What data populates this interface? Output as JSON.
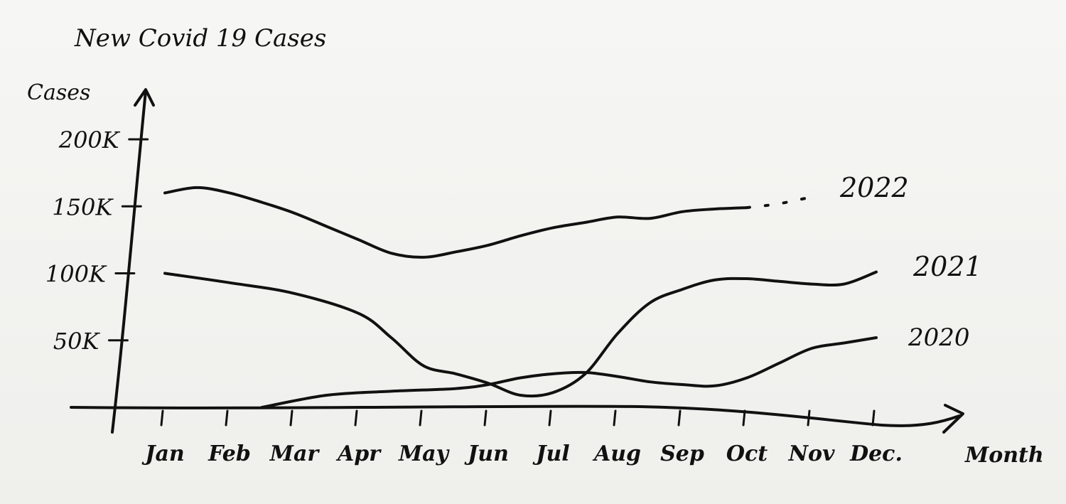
{
  "chart_data": {
    "type": "line",
    "title": "New Covid 19 Cases",
    "xlabel": "Month",
    "ylabel": "Cases",
    "categories": [
      "Jan",
      "Feb",
      "Mar",
      "Apr",
      "May",
      "Jun",
      "Jul",
      "Aug",
      "Sep",
      "Oct",
      "Nov",
      "Dec."
    ],
    "yticks": [
      {
        "label": "50K",
        "value": 50000
      },
      {
        "label": "100K",
        "value": 100000
      },
      {
        "label": "150K",
        "value": 150000
      },
      {
        "label": "200K",
        "value": 200000
      }
    ],
    "ylim": [
      0,
      200000
    ],
    "grid": false,
    "series": [
      {
        "name": "2020",
        "x": [
          2.5,
          3.5,
          4.5,
          5.5,
          6.0,
          6.5,
          7.0,
          7.5,
          8.0,
          8.5,
          9.0,
          9.5,
          10.0,
          10.5,
          11.0,
          11.5,
          12.0
        ],
        "values": [
          0,
          9000,
          12000,
          14000,
          17000,
          22000,
          25000,
          26000,
          23000,
          19000,
          17000,
          16000,
          22000,
          33000,
          44000,
          48000,
          52000
        ]
      },
      {
        "name": "2021",
        "x": [
          1.0,
          2.0,
          3.0,
          4.0,
          4.5,
          5.0,
          5.5,
          6.0,
          6.5,
          7.0,
          7.5,
          8.0,
          8.5,
          9.0,
          9.5,
          10.0,
          10.5,
          11.0,
          11.5,
          12.0
        ],
        "values": [
          100000,
          93000,
          85000,
          70000,
          52000,
          31000,
          25000,
          18000,
          9000,
          11000,
          25000,
          55000,
          78000,
          88000,
          95000,
          96000,
          94000,
          92000,
          92000,
          101000
        ]
      },
      {
        "name": "2022",
        "x": [
          1.0,
          1.5,
          2.0,
          2.5,
          3.0,
          3.5,
          4.0,
          4.5,
          5.0,
          5.5,
          6.0,
          6.5,
          7.0,
          7.5,
          8.0,
          8.5,
          9.0,
          9.5,
          10.0
        ],
        "values": [
          160000,
          164000,
          160000,
          153000,
          145000,
          135000,
          125000,
          115000,
          112000,
          116000,
          121000,
          128000,
          134000,
          138000,
          142000,
          141000,
          146000,
          148000,
          149000
        ],
        "extension": {
          "x": [
            10.0,
            10.5,
            11.0
          ],
          "values": [
            149000,
            152000,
            157000
          ]
        }
      }
    ]
  },
  "labels": {
    "title": "New Covid 19 Cases",
    "ylabel": "Cases",
    "xlabel": "Month",
    "series_2020": "2020",
    "series_2021": "2021",
    "series_2022": "2022"
  }
}
